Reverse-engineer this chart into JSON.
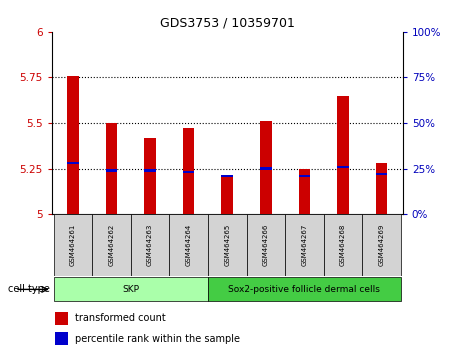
{
  "title": "GDS3753 / 10359701",
  "samples": [
    "GSM464261",
    "GSM464262",
    "GSM464263",
    "GSM464264",
    "GSM464265",
    "GSM464266",
    "GSM464267",
    "GSM464268",
    "GSM464269"
  ],
  "red_values": [
    5.76,
    5.5,
    5.42,
    5.47,
    5.21,
    5.51,
    5.25,
    5.65,
    5.28
  ],
  "blue_values": [
    5.28,
    5.24,
    5.24,
    5.23,
    5.21,
    5.25,
    5.21,
    5.26,
    5.22
  ],
  "y_min": 5.0,
  "y_max": 6.0,
  "y_ticks_left": [
    5.0,
    5.25,
    5.5,
    5.75,
    6.0
  ],
  "y_ticks_right_pct": [
    0,
    25,
    50,
    75,
    100
  ],
  "group_skp_label": "SKP",
  "group_skp_color": "#aaffaa",
  "group_skp_indices": [
    0,
    1,
    2,
    3
  ],
  "group_sox2_label": "Sox2-positive follicle dermal cells",
  "group_sox2_color": "#44cc44",
  "group_sox2_indices": [
    4,
    5,
    6,
    7,
    8
  ],
  "cell_type_label": "cell type",
  "legend_red_label": "transformed count",
  "legend_blue_label": "percentile rank within the sample",
  "bar_color": "#cc0000",
  "blue_color": "#0000cc",
  "tick_color_left": "#cc0000",
  "tick_color_right": "#0000bb",
  "bar_width": 0.3,
  "dotted_lines": [
    5.25,
    5.5,
    5.75
  ],
  "xlabel_fontsize": 5.5,
  "title_fontsize": 9
}
